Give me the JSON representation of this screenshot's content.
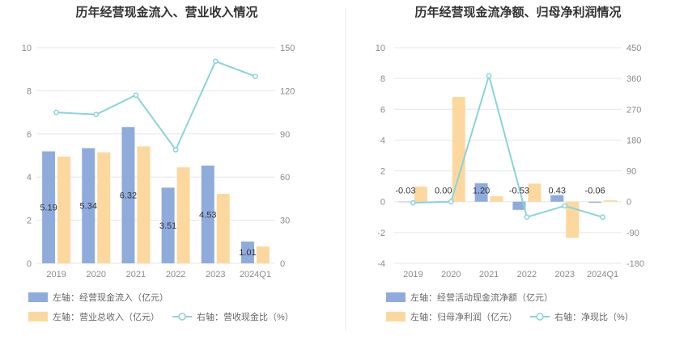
{
  "colors": {
    "blue": "#8eabdc",
    "orange": "#fdd89e",
    "teal": "#8ad3da",
    "grid": "#e6e6e6",
    "divider": "#e8e8e8"
  },
  "chart_data": [
    {
      "type": "bar",
      "title": "历年经营现金流入、营业收入情况",
      "categories": [
        "2019",
        "2020",
        "2021",
        "2022",
        "2023",
        "2024Q1"
      ],
      "left_axis": {
        "min": 0,
        "max": 10,
        "ticks": [
          "0",
          "2",
          "4",
          "6",
          "8",
          "10"
        ]
      },
      "right_axis": {
        "min": 0,
        "max": 150,
        "ticks": [
          "0",
          "30",
          "60",
          "90",
          "120",
          "150"
        ]
      },
      "series": [
        {
          "name": "左轴：经营现金流入（亿元）",
          "kind": "bar",
          "axis": "left",
          "color": "blue",
          "values": [
            5.19,
            5.34,
            6.32,
            3.51,
            4.53,
            1.01
          ],
          "labels": [
            "5.19",
            "5.34",
            "6.32",
            "3.51",
            "4.53",
            "1.01"
          ]
        },
        {
          "name": "左轴：营业总收入（亿元）",
          "kind": "bar",
          "axis": "left",
          "color": "orange",
          "values": [
            4.95,
            5.15,
            5.42,
            4.45,
            3.22,
            0.78
          ]
        },
        {
          "name": "右轴：营收现金比（%）",
          "kind": "line",
          "axis": "right",
          "color": "teal",
          "values": [
            105,
            103.5,
            117,
            79,
            140.5,
            130
          ]
        }
      ],
      "grid": true,
      "legend_position": "bottom"
    },
    {
      "type": "bar",
      "title": "历年经营现金流净额、归母净利润情况",
      "categories": [
        "2019",
        "2020",
        "2021",
        "2022",
        "2023",
        "2024Q1"
      ],
      "left_axis": {
        "min": -4,
        "max": 10,
        "ticks": [
          "-4",
          "-2",
          "0",
          "2",
          "4",
          "6",
          "8",
          "10"
        ]
      },
      "right_axis": {
        "min": -180,
        "max": 450,
        "ticks": [
          "-180",
          "-90",
          "0",
          "90",
          "180",
          "270",
          "360",
          "450"
        ]
      },
      "series": [
        {
          "name": "左轴：经营活动现金流净额（亿元）",
          "kind": "bar",
          "axis": "left",
          "color": "blue",
          "values": [
            -0.03,
            0.0,
            1.2,
            -0.53,
            0.43,
            -0.06
          ],
          "labels": [
            "-0.03",
            "0.00",
            "1.20",
            "-0.53",
            "0.43",
            "-0.06"
          ]
        },
        {
          "name": "左轴：归母净利润（亿元）",
          "kind": "bar",
          "axis": "left",
          "color": "orange",
          "values": [
            0.98,
            6.8,
            0.35,
            1.17,
            -2.35,
            0.1
          ]
        },
        {
          "name": "右轴：净现比（%）",
          "kind": "line",
          "axis": "right",
          "color": "teal",
          "values": [
            -3,
            0,
            368,
            -45,
            -12,
            -45
          ]
        }
      ],
      "grid": true,
      "legend_position": "bottom"
    }
  ]
}
